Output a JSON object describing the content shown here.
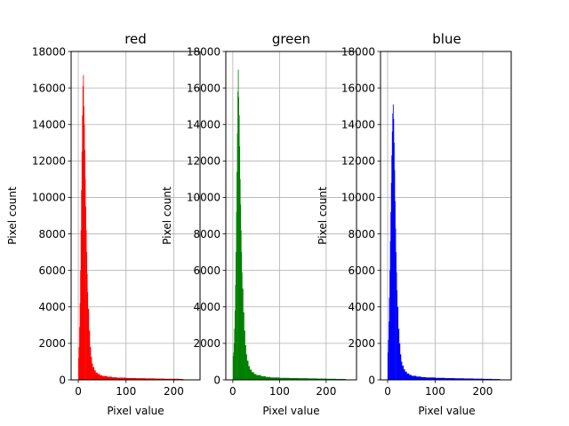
{
  "chart_data": [
    {
      "type": "bar",
      "title": "red",
      "xlabel": "Pixel value",
      "ylabel": "Pixel count",
      "xlim": [
        -15,
        255
      ],
      "ylim": [
        0,
        18000
      ],
      "xticks": [
        0,
        100,
        200
      ],
      "yticks": [
        0,
        2000,
        4000,
        6000,
        8000,
        10000,
        12000,
        14000,
        16000,
        18000
      ],
      "grid": true,
      "color": "#ff0000",
      "bins": [
        {
          "x": 0,
          "value": 1200
        },
        {
          "x": 1,
          "value": 1800
        },
        {
          "x": 2,
          "value": 2900
        },
        {
          "x": 3,
          "value": 4200
        },
        {
          "x": 4,
          "value": 6000
        },
        {
          "x": 5,
          "value": 8200
        },
        {
          "x": 6,
          "value": 10400
        },
        {
          "x": 7,
          "value": 12500
        },
        {
          "x": 8,
          "value": 14500
        },
        {
          "x": 9,
          "value": 16100
        },
        {
          "x": 10,
          "value": 16700
        },
        {
          "x": 11,
          "value": 15000
        },
        {
          "x": 12,
          "value": 14000
        },
        {
          "x": 13,
          "value": 12600
        },
        {
          "x": 14,
          "value": 11000
        },
        {
          "x": 15,
          "value": 9500
        },
        {
          "x": 16,
          "value": 8200
        },
        {
          "x": 17,
          "value": 7000
        },
        {
          "x": 18,
          "value": 5800
        },
        {
          "x": 19,
          "value": 4800
        },
        {
          "x": 20,
          "value": 3900
        },
        {
          "x": 22,
          "value": 2700
        },
        {
          "x": 24,
          "value": 1800
        },
        {
          "x": 26,
          "value": 1250
        },
        {
          "x": 28,
          "value": 900
        },
        {
          "x": 30,
          "value": 700
        },
        {
          "x": 33,
          "value": 520
        },
        {
          "x": 36,
          "value": 400
        },
        {
          "x": 40,
          "value": 320
        },
        {
          "x": 45,
          "value": 250
        },
        {
          "x": 50,
          "value": 210
        },
        {
          "x": 60,
          "value": 170
        },
        {
          "x": 70,
          "value": 140
        },
        {
          "x": 80,
          "value": 120
        },
        {
          "x": 100,
          "value": 100
        },
        {
          "x": 120,
          "value": 90
        },
        {
          "x": 140,
          "value": 80
        },
        {
          "x": 160,
          "value": 70
        },
        {
          "x": 180,
          "value": 60
        },
        {
          "x": 200,
          "value": 60
        },
        {
          "x": 210,
          "value": 50
        },
        {
          "x": 218,
          "value": 40
        }
      ]
    },
    {
      "type": "bar",
      "title": "green",
      "xlabel": "Pixel value",
      "ylabel": "Pixel count",
      "xlim": [
        -15,
        265
      ],
      "ylim": [
        0,
        18000
      ],
      "xticks": [
        0,
        100,
        200
      ],
      "yticks": [
        0,
        2000,
        4000,
        6000,
        8000,
        10000,
        12000,
        14000,
        16000,
        18000
      ],
      "grid": true,
      "color": "#008000",
      "bins": [
        {
          "x": 0,
          "value": 1300
        },
        {
          "x": 1,
          "value": 1500
        },
        {
          "x": 2,
          "value": 2000
        },
        {
          "x": 3,
          "value": 2800
        },
        {
          "x": 4,
          "value": 3800
        },
        {
          "x": 5,
          "value": 5200
        },
        {
          "x": 6,
          "value": 7000
        },
        {
          "x": 7,
          "value": 9200
        },
        {
          "x": 8,
          "value": 11400
        },
        {
          "x": 9,
          "value": 13500
        },
        {
          "x": 10,
          "value": 15800
        },
        {
          "x": 11,
          "value": 17000
        },
        {
          "x": 12,
          "value": 15500
        },
        {
          "x": 13,
          "value": 14500
        },
        {
          "x": 14,
          "value": 12800
        },
        {
          "x": 15,
          "value": 11000
        },
        {
          "x": 16,
          "value": 9600
        },
        {
          "x": 17,
          "value": 8200
        },
        {
          "x": 18,
          "value": 7000
        },
        {
          "x": 19,
          "value": 5900
        },
        {
          "x": 20,
          "value": 5000
        },
        {
          "x": 22,
          "value": 3700
        },
        {
          "x": 24,
          "value": 2700
        },
        {
          "x": 26,
          "value": 1900
        },
        {
          "x": 28,
          "value": 1400
        },
        {
          "x": 30,
          "value": 1050
        },
        {
          "x": 33,
          "value": 750
        },
        {
          "x": 36,
          "value": 560
        },
        {
          "x": 40,
          "value": 420
        },
        {
          "x": 45,
          "value": 320
        },
        {
          "x": 50,
          "value": 260
        },
        {
          "x": 60,
          "value": 200
        },
        {
          "x": 70,
          "value": 160
        },
        {
          "x": 80,
          "value": 130
        },
        {
          "x": 100,
          "value": 110
        },
        {
          "x": 120,
          "value": 100
        },
        {
          "x": 140,
          "value": 90
        },
        {
          "x": 160,
          "value": 80
        },
        {
          "x": 180,
          "value": 70
        },
        {
          "x": 200,
          "value": 60
        },
        {
          "x": 220,
          "value": 50
        },
        {
          "x": 240,
          "value": 40
        }
      ]
    },
    {
      "type": "bar",
      "title": "blue",
      "xlabel": "Pixel value",
      "ylabel": "Pixel count",
      "xlim": [
        -15,
        260
      ],
      "ylim": [
        0,
        18000
      ],
      "xticks": [
        0,
        100,
        200
      ],
      "yticks": [
        0,
        2000,
        4000,
        6000,
        8000,
        10000,
        12000,
        14000,
        16000,
        18000
      ],
      "grid": true,
      "color": "#0000ff",
      "bins": [
        {
          "x": 0,
          "value": 1500
        },
        {
          "x": 1,
          "value": 2200
        },
        {
          "x": 2,
          "value": 3200
        },
        {
          "x": 3,
          "value": 4500
        },
        {
          "x": 4,
          "value": 6000
        },
        {
          "x": 5,
          "value": 7600
        },
        {
          "x": 6,
          "value": 9200
        },
        {
          "x": 7,
          "value": 10800
        },
        {
          "x": 8,
          "value": 12300
        },
        {
          "x": 9,
          "value": 13600
        },
        {
          "x": 10,
          "value": 14600
        },
        {
          "x": 11,
          "value": 15100
        },
        {
          "x": 12,
          "value": 14300
        },
        {
          "x": 13,
          "value": 13000
        },
        {
          "x": 14,
          "value": 11500
        },
        {
          "x": 15,
          "value": 9800
        },
        {
          "x": 16,
          "value": 8300
        },
        {
          "x": 17,
          "value": 7000
        },
        {
          "x": 18,
          "value": 5900
        },
        {
          "x": 19,
          "value": 4900
        },
        {
          "x": 20,
          "value": 4000
        },
        {
          "x": 22,
          "value": 2800
        },
        {
          "x": 24,
          "value": 2000
        },
        {
          "x": 26,
          "value": 1400
        },
        {
          "x": 28,
          "value": 1000
        },
        {
          "x": 30,
          "value": 780
        },
        {
          "x": 33,
          "value": 580
        },
        {
          "x": 36,
          "value": 450
        },
        {
          "x": 40,
          "value": 350
        },
        {
          "x": 45,
          "value": 270
        },
        {
          "x": 50,
          "value": 220
        },
        {
          "x": 60,
          "value": 180
        },
        {
          "x": 70,
          "value": 150
        },
        {
          "x": 80,
          "value": 130
        },
        {
          "x": 100,
          "value": 110
        },
        {
          "x": 120,
          "value": 95
        },
        {
          "x": 140,
          "value": 85
        },
        {
          "x": 160,
          "value": 75
        },
        {
          "x": 180,
          "value": 65
        },
        {
          "x": 200,
          "value": 55
        },
        {
          "x": 220,
          "value": 45
        },
        {
          "x": 235,
          "value": 35
        }
      ]
    }
  ]
}
